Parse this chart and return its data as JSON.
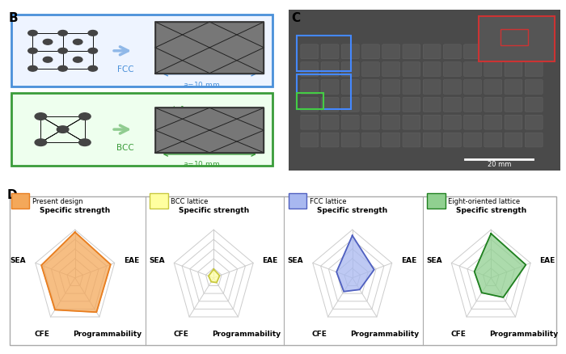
{
  "fcc_box_color": "#4a90d9",
  "bcc_box_color": "#3a9c3a",
  "radar_categories": [
    "Specific strength",
    "EAE",
    "Programmability",
    "CFE",
    "SEA"
  ],
  "radar_designs": {
    "Present design": {
      "values": [
        0.95,
        0.9,
        0.88,
        0.82,
        0.85
      ],
      "fill_color": "#F4A85A",
      "edge_color": "#E87E20",
      "legend_fill": "#F4A85A",
      "legend_edge": "#E87E20"
    },
    "BCC lattice": {
      "values": [
        0.18,
        0.15,
        0.12,
        0.1,
        0.13
      ],
      "fill_color": "#FFFFA0",
      "edge_color": "#C8C840",
      "legend_fill": "#FFFFA0",
      "legend_edge": "#C8C840"
    },
    "FCC lattice": {
      "values": [
        0.88,
        0.55,
        0.3,
        0.35,
        0.4
      ],
      "fill_color": "#A8B8F0",
      "edge_color": "#5060C0",
      "legend_fill": "#A8B8F0",
      "legend_edge": "#5060C0"
    },
    "Eight-oriented lattice": {
      "values": [
        0.92,
        0.88,
        0.5,
        0.38,
        0.42
      ],
      "fill_color": "#90D090",
      "edge_color": "#208020",
      "legend_fill": "#90D090",
      "legend_edge": "#208020"
    }
  },
  "radar_grid_levels": [
    0.2,
    0.4,
    0.6,
    0.8,
    1.0
  ],
  "fcc_text_color": "#4a90d9",
  "bcc_text_color": "#3a9c3a",
  "bg_color": "#ffffff"
}
